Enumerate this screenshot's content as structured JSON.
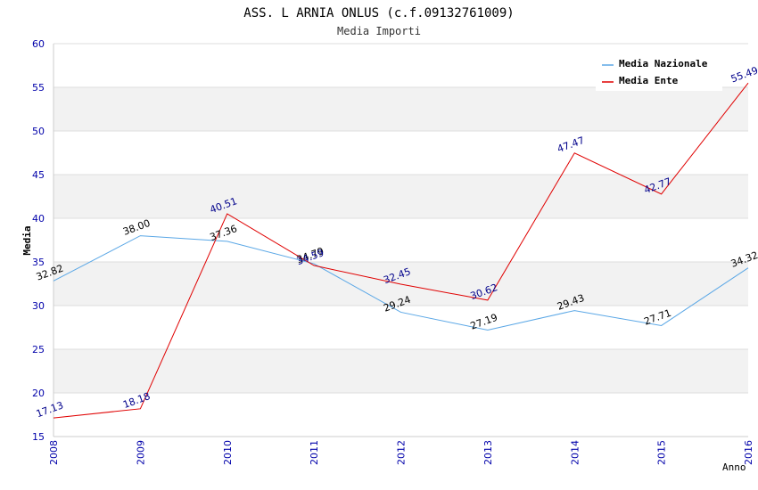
{
  "chart_data": {
    "type": "line",
    "title": "ASS. L ARNIA ONLUS (c.f.09132761009)",
    "subtitle": "Media Importi",
    "xlabel": "Anno",
    "ylabel": "Media",
    "categories": [
      "2008",
      "2009",
      "2010",
      "2011",
      "2012",
      "2013",
      "2014",
      "2015",
      "2016"
    ],
    "ylim": [
      15,
      60
    ],
    "yticks": [
      "15",
      "20",
      "25",
      "30",
      "35",
      "40",
      "45",
      "50",
      "55",
      "60"
    ],
    "grid": "horizontal alternating bands",
    "legend_position": "top-right",
    "series": [
      {
        "name": "Media Nazionale",
        "color": "#5aa7e6",
        "label_color": "#000000",
        "values": [
          32.82,
          38.0,
          37.36,
          34.79,
          29.24,
          27.19,
          29.43,
          27.71,
          34.32
        ],
        "labels": [
          "32.82",
          "38.00",
          "37.36",
          "34.79",
          "29.24",
          "27.19",
          "29.43",
          "27.71",
          "34.32"
        ]
      },
      {
        "name": "Media Ente",
        "color": "#e00000",
        "label_color": "#00008b",
        "values": [
          17.13,
          18.18,
          40.51,
          34.59,
          32.45,
          30.62,
          47.47,
          42.77,
          55.49
        ],
        "labels": [
          "17.13",
          "18.18",
          "40.51",
          "34.59",
          "32.45",
          "30.62",
          "47.47",
          "42.77",
          "55.49"
        ]
      }
    ],
    "colors": {
      "axis_text": "#0000aa",
      "band": "#f2f2f2",
      "gridline": "#dddddd"
    }
  }
}
